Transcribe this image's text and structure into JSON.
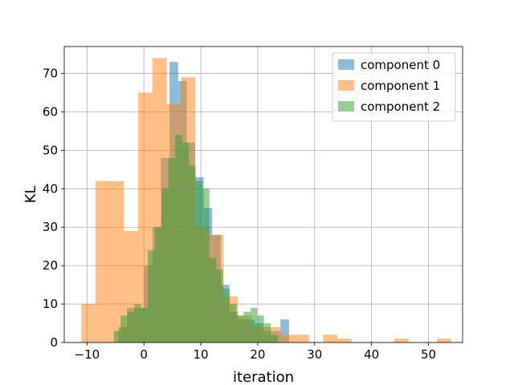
{
  "chart_data": {
    "type": "bar",
    "xlabel": "iteration",
    "ylabel": "KL",
    "xlim": [
      -14,
      56
    ],
    "ylim": [
      0,
      77
    ],
    "xticks": [
      -10,
      0,
      10,
      20,
      30,
      40,
      50
    ],
    "yticks": [
      0,
      10,
      20,
      30,
      40,
      50,
      60,
      70
    ],
    "grid": true,
    "legend_position": "top-right",
    "series": [
      {
        "name": "component 0",
        "color": "#1f77b4",
        "bin_width": 1.5,
        "bins": [
          [
            -4.5,
            4
          ],
          [
            -3,
            9
          ],
          [
            -1.5,
            9
          ],
          [
            0,
            20
          ],
          [
            1.5,
            30
          ],
          [
            3,
            48
          ],
          [
            4.5,
            73
          ],
          [
            6,
            68
          ],
          [
            7.5,
            52
          ],
          [
            9,
            43
          ],
          [
            10.5,
            35
          ],
          [
            12,
            28
          ],
          [
            13.5,
            15
          ],
          [
            15,
            8
          ],
          [
            16.5,
            6
          ],
          [
            18,
            6
          ],
          [
            19.5,
            5
          ],
          [
            21,
            3
          ],
          [
            22.5,
            3
          ],
          [
            24,
            6
          ]
        ]
      },
      {
        "name": "component 1",
        "color": "#ff7f0e",
        "bin_width": 2.5,
        "bins": [
          [
            -11,
            10
          ],
          [
            -8.5,
            42
          ],
          [
            -6,
            42
          ],
          [
            -3.5,
            29
          ],
          [
            -1,
            65
          ],
          [
            1.5,
            74
          ],
          [
            4,
            62
          ],
          [
            6.5,
            69
          ],
          [
            9,
            30
          ],
          [
            11.5,
            28
          ],
          [
            14,
            12
          ],
          [
            16.5,
            7
          ],
          [
            19,
            4
          ],
          [
            21.5,
            4
          ],
          [
            24,
            2
          ],
          [
            26.5,
            2
          ],
          [
            29,
            0
          ],
          [
            31.5,
            2
          ],
          [
            34,
            1
          ],
          [
            36.5,
            0
          ],
          [
            39,
            0
          ],
          [
            41.5,
            0
          ],
          [
            44,
            1
          ],
          [
            46.5,
            0
          ],
          [
            49,
            0
          ],
          [
            51.5,
            1
          ]
        ]
      },
      {
        "name": "component 2",
        "color": "#2ca02c",
        "bin_width": 1.2,
        "bins": [
          [
            -5.3,
            3
          ],
          [
            -4.1,
            7
          ],
          [
            -2.9,
            8
          ],
          [
            -1.7,
            10
          ],
          [
            -0.5,
            9
          ],
          [
            0.7,
            24
          ],
          [
            1.9,
            30
          ],
          [
            3.1,
            40
          ],
          [
            4.3,
            48
          ],
          [
            5.5,
            54
          ],
          [
            6.7,
            52
          ],
          [
            7.9,
            46
          ],
          [
            9.1,
            42
          ],
          [
            10.3,
            40
          ],
          [
            11.5,
            22
          ],
          [
            12.7,
            19
          ],
          [
            13.9,
            14
          ],
          [
            15.1,
            10
          ],
          [
            16.3,
            7
          ],
          [
            17.5,
            8
          ],
          [
            18.7,
            9
          ],
          [
            19.9,
            7
          ],
          [
            21.1,
            5
          ],
          [
            22.3,
            2
          ]
        ]
      }
    ]
  }
}
